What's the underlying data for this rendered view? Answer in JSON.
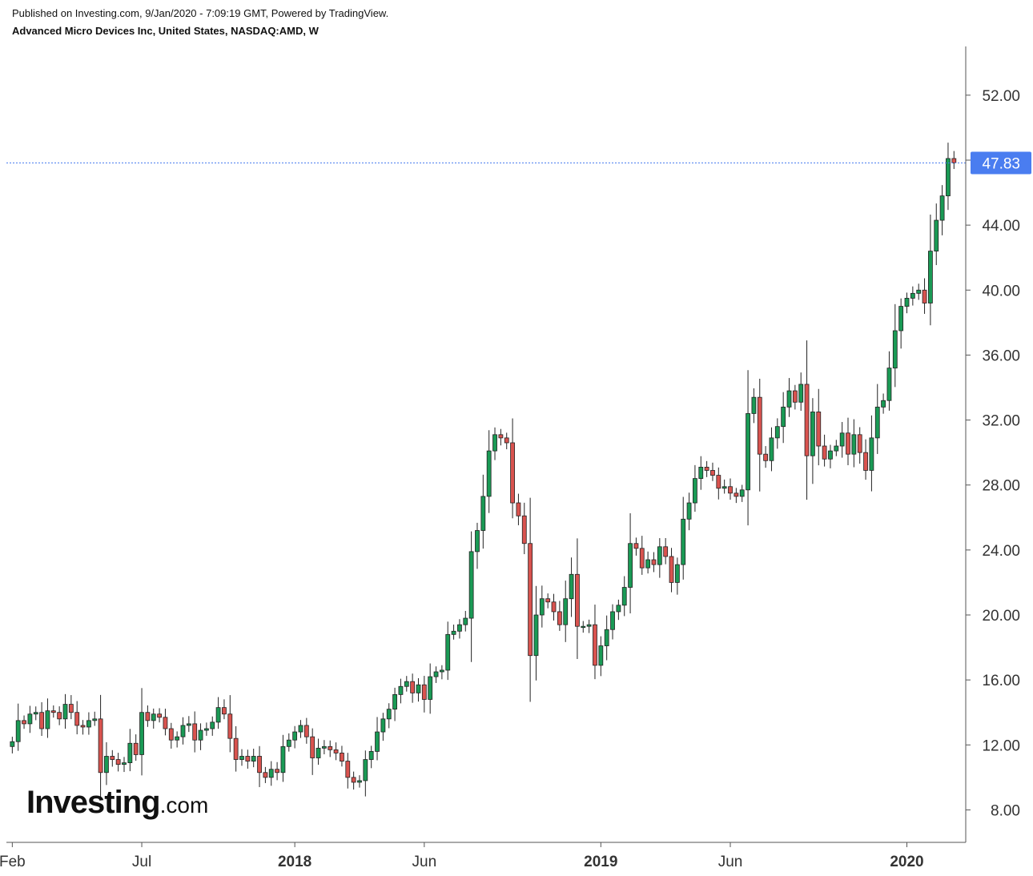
{
  "header": {
    "published": "Published on Investing.com, 9/Jan/2020 - 7:09:19 GMT, Powered by TradingView.",
    "instrument": "Advanced Micro Devices Inc, United States, NASDAQ:AMD, W"
  },
  "logo": {
    "brand": "Investing",
    "suffix": ".com"
  },
  "last_price_label": "47.83",
  "colors": {
    "up": "#1a9a55",
    "down": "#d9534f",
    "wick": "#222222",
    "last_price": "#4a7df0",
    "axis": "#555555"
  },
  "chart_data": {
    "type": "candlestick",
    "title": "Advanced Micro Devices Inc, United States, NASDAQ:AMD, W",
    "interval": "weekly",
    "ylim": [
      6.0,
      55.0
    ],
    "y_ticks": [
      "8.00",
      "12.00",
      "16.00",
      "20.00",
      "24.00",
      "28.00",
      "32.00",
      "36.00",
      "40.00",
      "44.00",
      "48.00",
      "52.00"
    ],
    "y_tick_values": [
      8,
      12,
      16,
      20,
      24,
      28,
      32,
      36,
      40,
      44,
      48,
      52
    ],
    "x_ticks": [
      {
        "label": "Feb",
        "week": 0,
        "bold": false
      },
      {
        "label": "Jul",
        "week": 22,
        "bold": false
      },
      {
        "label": "2018",
        "week": 48,
        "bold": true
      },
      {
        "label": "Jun",
        "week": 70,
        "bold": false
      },
      {
        "label": "2019",
        "week": 100,
        "bold": true
      },
      {
        "label": "Jun",
        "week": 122,
        "bold": false
      },
      {
        "label": "2020",
        "week": 152,
        "bold": true
      }
    ],
    "x_range_weeks": [
      -1,
      162
    ],
    "last_price": 47.83,
    "close": [
      12.2,
      13.5,
      13.3,
      13.9,
      14.0,
      13.0,
      14.1,
      14.0,
      13.6,
      14.5,
      14.0,
      13.2,
      13.1,
      13.5,
      13.6,
      10.3,
      11.3,
      11.1,
      10.8,
      10.9,
      12.1,
      11.4,
      14.0,
      13.5,
      13.9,
      13.7,
      13.0,
      12.3,
      12.5,
      13.2,
      13.3,
      12.3,
      12.9,
      13.0,
      13.4,
      14.3,
      13.9,
      12.4,
      11.1,
      11.3,
      11.0,
      11.3,
      10.3,
      10.0,
      10.5,
      10.3,
      11.9,
      12.3,
      12.8,
      13.2,
      12.5,
      11.2,
      11.8,
      11.9,
      11.7,
      11.5,
      11.0,
      10.0,
      9.7,
      9.8,
      11.1,
      11.6,
      12.8,
      13.6,
      14.2,
      15.1,
      15.6,
      15.9,
      15.2,
      15.7,
      14.8,
      16.2,
      16.5,
      16.6,
      18.8,
      19.0,
      19.4,
      19.8,
      23.9,
      25.2,
      27.3,
      30.1,
      31.1,
      30.9,
      30.6,
      26.9,
      26.1,
      24.4,
      17.5,
      20.0,
      21.0,
      20.8,
      20.2,
      19.4,
      21.0,
      22.5,
      19.3,
      19.3,
      19.4,
      16.9,
      18.1,
      19.1,
      20.2,
      20.6,
      21.7,
      24.4,
      24.1,
      22.9,
      23.4,
      23.1,
      24.2,
      23.6,
      22.0,
      23.1,
      25.9,
      26.9,
      28.4,
      29.1,
      28.9,
      28.6,
      27.8,
      27.9,
      27.5,
      27.3,
      27.7,
      32.4,
      33.4,
      29.9,
      29.5,
      30.9,
      31.6,
      32.8,
      33.8,
      33.1,
      34.2,
      29.8,
      32.5,
      30.4,
      29.6,
      30.1,
      30.4,
      31.2,
      29.9,
      31.1,
      30.0,
      28.9,
      30.9,
      32.8,
      33.2,
      35.2,
      37.5,
      39.0,
      39.5,
      39.8,
      40.0,
      39.2,
      42.4,
      44.3,
      45.8,
      48.1,
      47.83
    ],
    "open": [
      11.9,
      12.2,
      13.5,
      13.3,
      13.9,
      14.0,
      13.0,
      14.1,
      14.0,
      13.6,
      14.5,
      14.0,
      13.2,
      13.1,
      13.5,
      13.6,
      10.3,
      11.3,
      11.1,
      10.8,
      10.9,
      12.1,
      11.4,
      14.0,
      13.5,
      13.9,
      13.7,
      13.0,
      12.3,
      12.5,
      13.2,
      13.3,
      12.3,
      12.9,
      13.0,
      13.4,
      14.3,
      13.9,
      12.4,
      11.1,
      11.3,
      11.0,
      11.3,
      10.3,
      10.0,
      10.5,
      10.3,
      11.9,
      12.3,
      12.8,
      13.2,
      12.5,
      11.2,
      11.8,
      11.9,
      11.7,
      11.5,
      11.0,
      10.0,
      9.7,
      9.8,
      11.1,
      11.6,
      12.8,
      13.6,
      14.2,
      15.1,
      15.6,
      15.9,
      15.2,
      15.7,
      14.8,
      16.2,
      16.5,
      16.6,
      18.8,
      19.0,
      19.4,
      19.8,
      23.9,
      25.2,
      27.3,
      30.1,
      31.1,
      30.9,
      30.6,
      26.9,
      26.1,
      24.4,
      17.5,
      20.0,
      21.0,
      20.8,
      20.2,
      19.4,
      21.0,
      22.5,
      19.3,
      19.3,
      19.4,
      16.9,
      18.1,
      19.1,
      20.2,
      20.6,
      21.7,
      24.4,
      24.1,
      22.9,
      23.4,
      23.1,
      24.2,
      23.6,
      22.0,
      23.1,
      25.9,
      26.9,
      28.4,
      29.1,
      28.9,
      28.6,
      27.8,
      27.9,
      27.5,
      27.3,
      27.7,
      32.4,
      33.4,
      29.9,
      29.5,
      30.9,
      31.6,
      32.8,
      33.8,
      33.1,
      34.2,
      29.8,
      32.5,
      30.4,
      29.6,
      30.1,
      30.4,
      31.2,
      29.9,
      31.1,
      30.0,
      28.9,
      30.9,
      32.8,
      33.2,
      35.2,
      37.5,
      39.0,
      39.5,
      39.8,
      40.0,
      39.2,
      42.4,
      44.3,
      45.8,
      48.1
    ]
  }
}
